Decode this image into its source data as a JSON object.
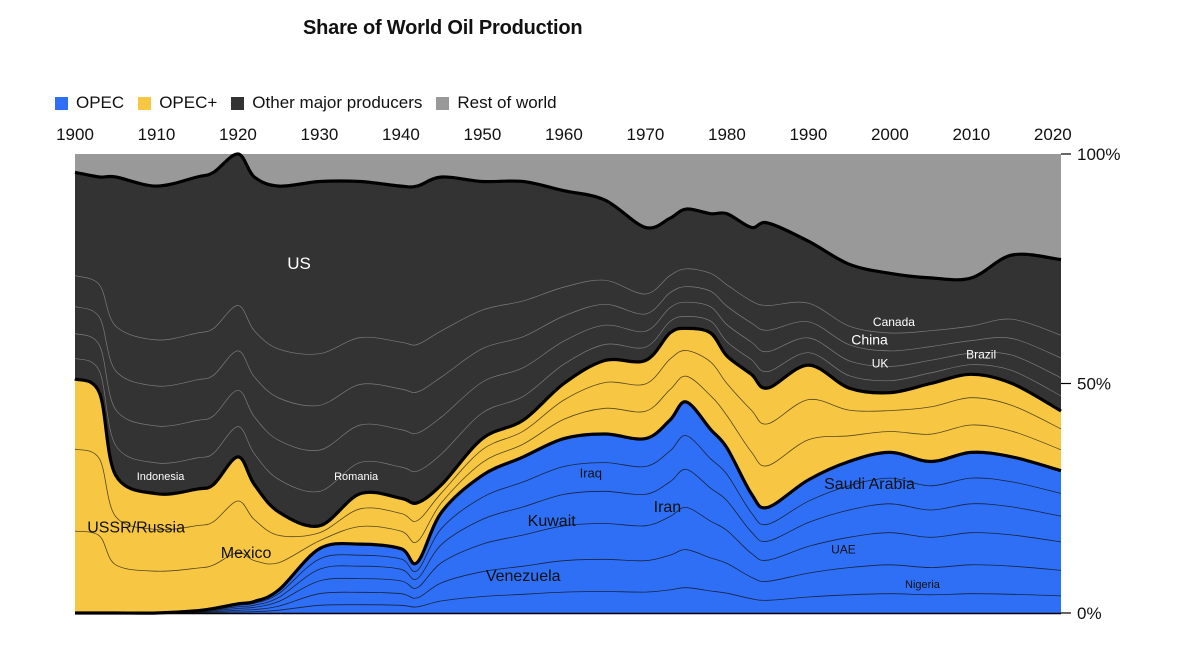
{
  "title": "Share of World Oil Production",
  "colors": {
    "OPEC": "#2f6ff5",
    "OPEC+": "#f7c744",
    "Other major producers": "#333333",
    "Rest of world": "#999999"
  },
  "legend": [
    {
      "name": "OPEC",
      "color": "#2f6ff5"
    },
    {
      "name": "OPEC+",
      "color": "#f7c744"
    },
    {
      "name": "Other major producers",
      "color": "#333333"
    },
    {
      "name": "Rest of world",
      "color": "#999999"
    }
  ],
  "chart_data": {
    "type": "area",
    "title": "Share of World Oil Production",
    "x_ticks": [
      "1900",
      "1910",
      "1920",
      "1930",
      "1940",
      "1950",
      "1960",
      "1970",
      "1980",
      "1990",
      "2000",
      "2010",
      "2020"
    ],
    "y_ticks": [
      "0%",
      "50%",
      "100%"
    ],
    "xlim": [
      1900,
      2021
    ],
    "ylim": [
      0,
      100
    ],
    "x": [
      1900,
      1903,
      1905,
      1910,
      1915,
      1917,
      1920,
      1922,
      1925,
      1930,
      1935,
      1940,
      1942,
      1945,
      1950,
      1955,
      1960,
      1965,
      1970,
      1973,
      1975,
      1978,
      1980,
      1983,
      1985,
      1990,
      1995,
      2000,
      2005,
      2010,
      2015,
      2021
    ],
    "boundaries": [
      {
        "name": "OPEC top",
        "values": [
          0,
          0,
          0,
          0,
          0.5,
          1,
          2,
          2.5,
          5,
          14,
          15,
          14,
          11,
          22,
          30,
          34,
          38,
          39,
          38,
          42,
          46,
          40,
          36,
          26,
          23,
          29,
          33,
          35,
          33,
          35,
          34,
          31
        ]
      },
      {
        "name": "OPEC+ top",
        "values": [
          51,
          48,
          30,
          26,
          27,
          28,
          34,
          28,
          22,
          19,
          26,
          25,
          24,
          28,
          38,
          42,
          50,
          55,
          55,
          61,
          62,
          61,
          56,
          52,
          49,
          54,
          49,
          48,
          50,
          52,
          50,
          44
        ]
      },
      {
        "name": "Other major top",
        "values": [
          96,
          95,
          95,
          93,
          95,
          96,
          100,
          95,
          93,
          94,
          94,
          93,
          93,
          95,
          94,
          94,
          92,
          90,
          84,
          86,
          88,
          87,
          87,
          84,
          85,
          81,
          76,
          74,
          73,
          73,
          78,
          77
        ]
      }
    ],
    "series": [
      {
        "name": "OPEC",
        "color": "#2f6ff5"
      },
      {
        "name": "OPEC+",
        "color": "#f7c744"
      },
      {
        "name": "Other major producers",
        "color": "#333333"
      },
      {
        "name": "Rest of world",
        "color": "#999999"
      }
    ],
    "annotations": [
      {
        "text": "US",
        "x": 1927.5,
        "y": 75,
        "size": 17,
        "color": "#ffffff"
      },
      {
        "text": "Indonesia",
        "x": 1910.5,
        "y": 29,
        "size": 11,
        "color": "#ffffff"
      },
      {
        "text": "Romania",
        "x": 1934.5,
        "y": 29,
        "size": 11,
        "color": "#ffffff"
      },
      {
        "text": "USSR/Russia",
        "x": 1907.5,
        "y": 17.5,
        "size": 16,
        "color": "#111111"
      },
      {
        "text": "Mexico",
        "x": 1921,
        "y": 12,
        "size": 16,
        "color": "#111111"
      },
      {
        "text": "Canada",
        "x": 2000.5,
        "y": 62.5,
        "size": 12,
        "color": "#ffffff"
      },
      {
        "text": "China",
        "x": 1997.5,
        "y": 58.5,
        "size": 14,
        "color": "#ffffff"
      },
      {
        "text": "UK",
        "x": 1998.8,
        "y": 53.5,
        "size": 12,
        "color": "#ffffff"
      },
      {
        "text": "Brazil",
        "x": 2011.2,
        "y": 55.5,
        "size": 12,
        "color": "#ffffff"
      },
      {
        "text": "Iraq",
        "x": 1963.3,
        "y": 29.5,
        "size": 13,
        "color": "#111111"
      },
      {
        "text": "Iran",
        "x": 1972.7,
        "y": 22,
        "size": 16,
        "color": "#111111"
      },
      {
        "text": "Kuwait",
        "x": 1958.5,
        "y": 19,
        "size": 16,
        "color": "#111111"
      },
      {
        "text": "Saudi Arabia",
        "x": 1997.5,
        "y": 27,
        "size": 16,
        "color": "#111111"
      },
      {
        "text": "UAE",
        "x": 1994.3,
        "y": 13,
        "size": 12,
        "color": "#111111"
      },
      {
        "text": "Venezuela",
        "x": 1955,
        "y": 7,
        "size": 16,
        "color": "#111111"
      },
      {
        "text": "Nigeria",
        "x": 2004,
        "y": 5.5,
        "size": 11,
        "color": "#111111"
      }
    ]
  }
}
